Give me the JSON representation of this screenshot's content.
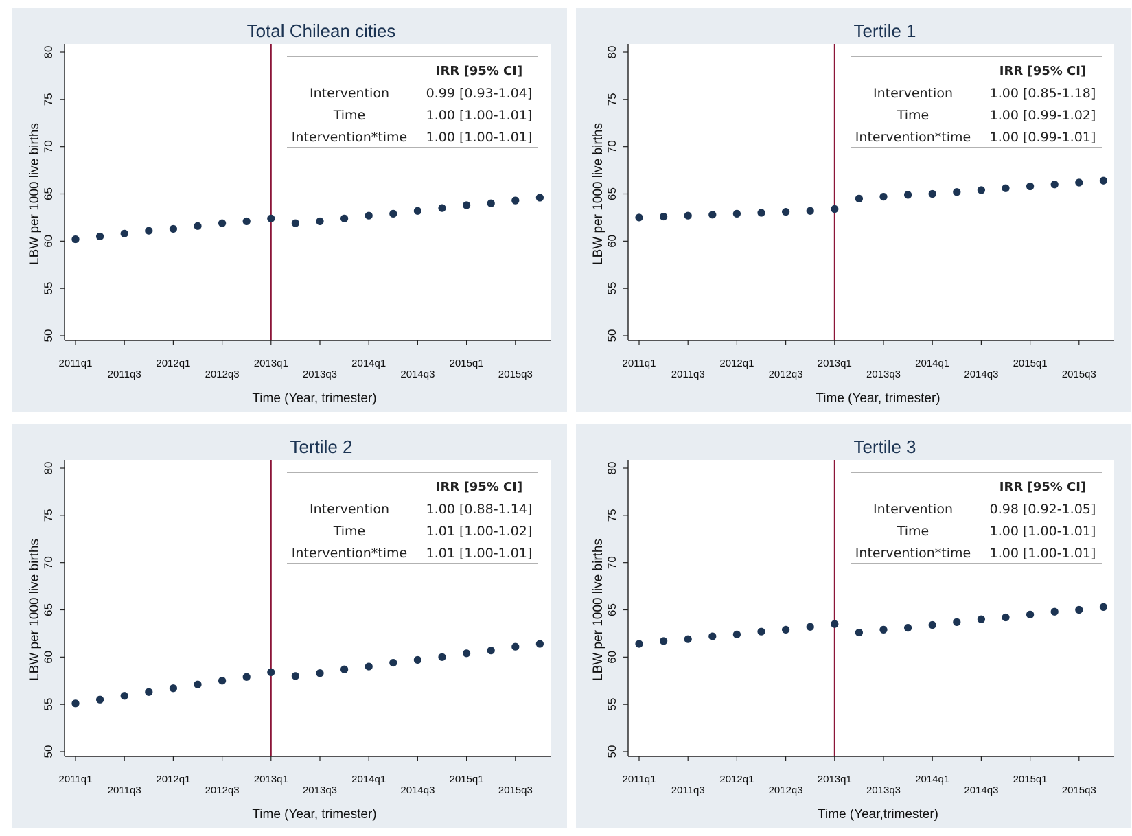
{
  "chart_data": [
    {
      "type": "scatter",
      "title": "Total Chilean cities",
      "ylabel": "LBW per 1000 live births",
      "xlabel": "Time (Year, trimester)",
      "ylim": [
        50,
        80
      ],
      "yticks": [
        50,
        55,
        60,
        65,
        70,
        75,
        80
      ],
      "x_labels": [
        "2011q1",
        "2011q3",
        "2012q1",
        "2012q3",
        "2013q1",
        "2013q3",
        "2014q1",
        "2014q3",
        "2015q1",
        "2015q3"
      ],
      "intervention_label": "2013q1",
      "x": [
        "2011q1",
        "2011q2",
        "2011q3",
        "2011q4",
        "2012q1",
        "2012q2",
        "2012q3",
        "2012q4",
        "2013q1",
        "2013q2",
        "2013q3",
        "2013q4",
        "2014q1",
        "2014q2",
        "2014q3",
        "2014q4",
        "2015q1",
        "2015q2",
        "2015q3",
        "2015q4"
      ],
      "values": [
        60.2,
        60.5,
        60.8,
        61.1,
        61.3,
        61.6,
        61.9,
        62.1,
        62.4,
        61.9,
        62.1,
        62.4,
        62.7,
        62.9,
        63.2,
        63.5,
        63.8,
        64.0,
        64.3,
        64.6
      ],
      "table": {
        "header": "IRR [95% CI]",
        "rows": [
          {
            "label": "Intervention",
            "value": "0.99 [0.93-1.04]"
          },
          {
            "label": "Time",
            "value": "1.00 [1.00-1.01]"
          },
          {
            "label": "Intervention*time",
            "value": "1.00 [1.00-1.01]"
          }
        ]
      }
    },
    {
      "type": "scatter",
      "title": "Tertile 1",
      "ylabel": "LBW per 1000 live births",
      "xlabel": "Time (Year, trimester)",
      "ylim": [
        50,
        80
      ],
      "yticks": [
        50,
        55,
        60,
        65,
        70,
        75,
        80
      ],
      "x_labels": [
        "2011q1",
        "2011q3",
        "2012q1",
        "2012q3",
        "2013q1",
        "2013q3",
        "2014q1",
        "2014q3",
        "2015q1",
        "2015q3"
      ],
      "intervention_label": "2013q1",
      "x": [
        "2011q1",
        "2011q2",
        "2011q3",
        "2011q4",
        "2012q1",
        "2012q2",
        "2012q3",
        "2012q4",
        "2013q1",
        "2013q2",
        "2013q3",
        "2013q4",
        "2014q1",
        "2014q2",
        "2014q3",
        "2014q4",
        "2015q1",
        "2015q2",
        "2015q3",
        "2015q4"
      ],
      "values": [
        62.5,
        62.6,
        62.7,
        62.8,
        62.9,
        63.0,
        63.1,
        63.2,
        63.4,
        64.5,
        64.7,
        64.9,
        65.0,
        65.2,
        65.4,
        65.6,
        65.8,
        66.0,
        66.2,
        66.4
      ],
      "table": {
        "header": "IRR [95% CI]",
        "rows": [
          {
            "label": "Intervention",
            "value": "1.00 [0.85-1.18]"
          },
          {
            "label": "Time",
            "value": "1.00 [0.99-1.02]"
          },
          {
            "label": "Intervention*time",
            "value": "1.00 [0.99-1.01]"
          }
        ]
      }
    },
    {
      "type": "scatter",
      "title": "Tertile 2",
      "ylabel": "LBW per 1000 live births",
      "xlabel": "Time (Year, trimester)",
      "ylim": [
        50,
        80
      ],
      "yticks": [
        50,
        55,
        60,
        65,
        70,
        75,
        80
      ],
      "x_labels": [
        "2011q1",
        "2011q3",
        "2012q1",
        "2012q3",
        "2013q1",
        "2013q3",
        "2014q1",
        "2014q3",
        "2015q1",
        "2015q3"
      ],
      "intervention_label": "2013q1",
      "x": [
        "2011q1",
        "2011q2",
        "2011q3",
        "2011q4",
        "2012q1",
        "2012q2",
        "2012q3",
        "2012q4",
        "2013q1",
        "2013q2",
        "2013q3",
        "2013q4",
        "2014q1",
        "2014q2",
        "2014q3",
        "2014q4",
        "2015q1",
        "2015q2",
        "2015q3",
        "2015q4"
      ],
      "values": [
        55.1,
        55.5,
        55.9,
        56.3,
        56.7,
        57.1,
        57.5,
        57.9,
        58.4,
        58.0,
        58.3,
        58.7,
        59.0,
        59.4,
        59.7,
        60.0,
        60.4,
        60.7,
        61.1,
        61.4
      ],
      "table": {
        "header": "IRR [95% CI]",
        "rows": [
          {
            "label": "Intervention",
            "value": "1.00 [0.88-1.14]"
          },
          {
            "label": "Time",
            "value": "1.01 [1.00-1.02]"
          },
          {
            "label": "Intervention*time",
            "value": "1.01 [1.00-1.01]"
          }
        ]
      }
    },
    {
      "type": "scatter",
      "title": "Tertile 3",
      "ylabel": "LBW per 1000 live births",
      "xlabel": "Time (Year,trimester)",
      "ylim": [
        50,
        80
      ],
      "yticks": [
        50,
        55,
        60,
        65,
        70,
        75,
        80
      ],
      "x_labels": [
        "2011q1",
        "2011q3",
        "2012q1",
        "2012q3",
        "2013q1",
        "2013q3",
        "2014q1",
        "2014q3",
        "2015q1",
        "2015q3"
      ],
      "intervention_label": "2013q1",
      "x": [
        "2011q1",
        "2011q2",
        "2011q3",
        "2011q4",
        "2012q1",
        "2012q2",
        "2012q3",
        "2012q4",
        "2013q1",
        "2013q2",
        "2013q3",
        "2013q4",
        "2014q1",
        "2014q2",
        "2014q3",
        "2014q4",
        "2015q1",
        "2015q2",
        "2015q3",
        "2015q4"
      ],
      "values": [
        61.4,
        61.7,
        61.9,
        62.2,
        62.4,
        62.7,
        62.9,
        63.2,
        63.5,
        62.6,
        62.9,
        63.1,
        63.4,
        63.7,
        64.0,
        64.2,
        64.5,
        64.8,
        65.0,
        65.3
      ],
      "table": {
        "header": "IRR [95% CI]",
        "rows": [
          {
            "label": "Intervention",
            "value": "0.98 [0.92-1.05]"
          },
          {
            "label": "Time",
            "value": "1.00 [1.00-1.01]"
          },
          {
            "label": "Intervention*time",
            "value": "1.00 [1.00-1.01]"
          }
        ]
      }
    }
  ]
}
